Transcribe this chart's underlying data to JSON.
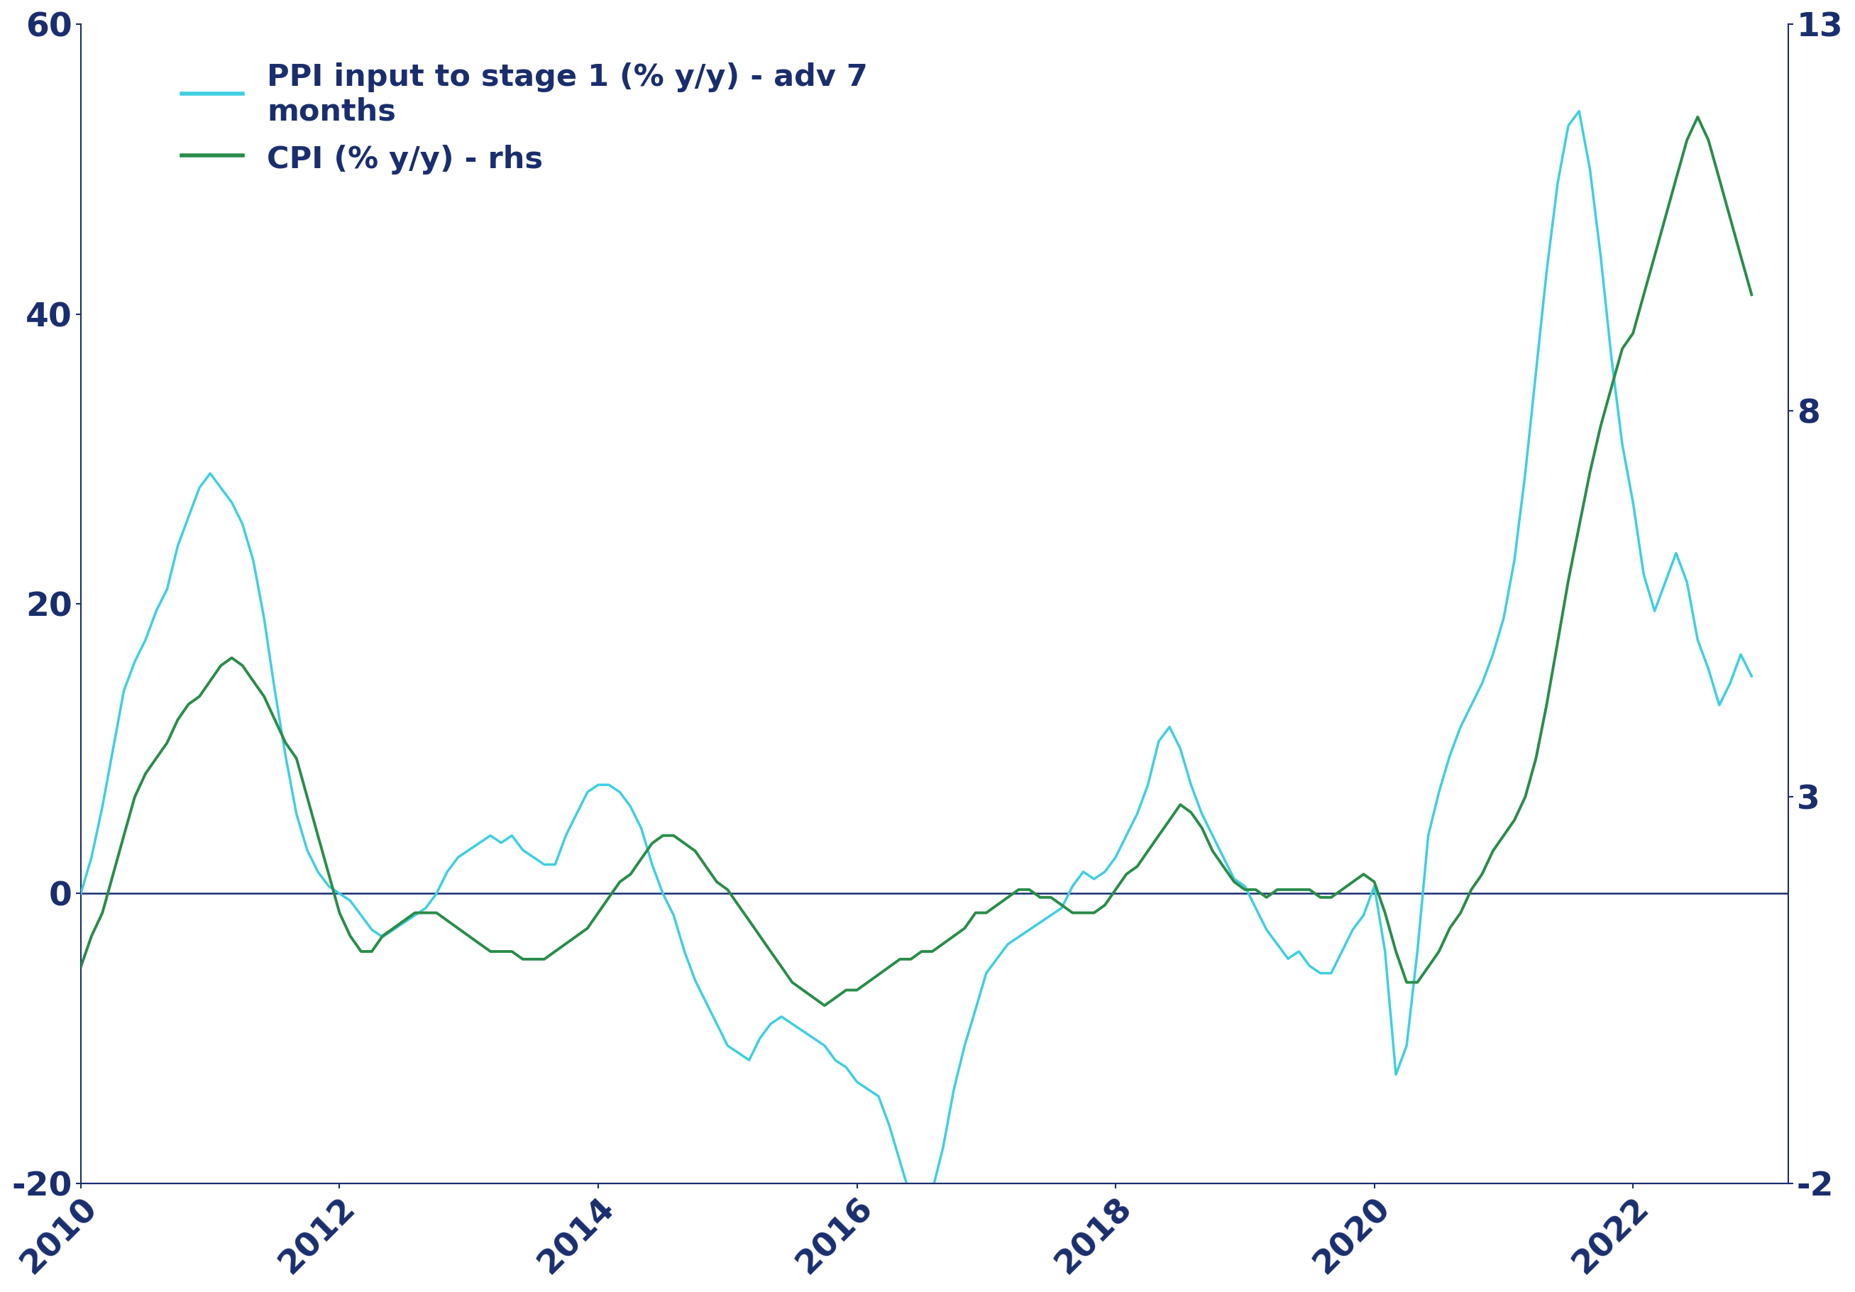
{
  "ppi_color": "#3ecfdf",
  "cpi_color": "#2a8c4a",
  "axis_color": "#1a2e6e",
  "zero_line_color": "#1a2e6e",
  "background_color": "#ffffff",
  "left_ylim": [
    -20,
    60
  ],
  "right_ylim": [
    -2,
    13
  ],
  "left_yticks": [
    -20,
    0,
    20,
    40,
    60
  ],
  "right_yticks": [
    -2,
    3,
    8,
    13
  ],
  "xtick_positions": [
    2010,
    2012,
    2014,
    2016,
    2018,
    2020,
    2022
  ],
  "xtick_labels": [
    "2010",
    "2012",
    "2014",
    "2016",
    "2018",
    "2020",
    "2022"
  ],
  "legend_ppi": "PPI input to stage 1 (% y/y) - adv 7\nmonths",
  "legend_cpi": "CPI (% y/y) - rhs",
  "xlim": [
    2010.0,
    2023.2
  ],
  "ppi_data": {
    "dates": [
      2010.0,
      2010.083,
      2010.167,
      2010.25,
      2010.333,
      2010.417,
      2010.5,
      2010.583,
      2010.667,
      2010.75,
      2010.833,
      2010.917,
      2011.0,
      2011.083,
      2011.167,
      2011.25,
      2011.333,
      2011.417,
      2011.5,
      2011.583,
      2011.667,
      2011.75,
      2011.833,
      2011.917,
      2012.0,
      2012.083,
      2012.167,
      2012.25,
      2012.333,
      2012.417,
      2012.5,
      2012.583,
      2012.667,
      2012.75,
      2012.833,
      2012.917,
      2013.0,
      2013.083,
      2013.167,
      2013.25,
      2013.333,
      2013.417,
      2013.5,
      2013.583,
      2013.667,
      2013.75,
      2013.833,
      2013.917,
      2014.0,
      2014.083,
      2014.167,
      2014.25,
      2014.333,
      2014.417,
      2014.5,
      2014.583,
      2014.667,
      2014.75,
      2014.833,
      2014.917,
      2015.0,
      2015.083,
      2015.167,
      2015.25,
      2015.333,
      2015.417,
      2015.5,
      2015.583,
      2015.667,
      2015.75,
      2015.833,
      2015.917,
      2016.0,
      2016.083,
      2016.167,
      2016.25,
      2016.333,
      2016.417,
      2016.5,
      2016.583,
      2016.667,
      2016.75,
      2016.833,
      2016.917,
      2017.0,
      2017.083,
      2017.167,
      2017.25,
      2017.333,
      2017.417,
      2017.5,
      2017.583,
      2017.667,
      2017.75,
      2017.833,
      2017.917,
      2018.0,
      2018.083,
      2018.167,
      2018.25,
      2018.333,
      2018.417,
      2018.5,
      2018.583,
      2018.667,
      2018.75,
      2018.833,
      2018.917,
      2019.0,
      2019.083,
      2019.167,
      2019.25,
      2019.333,
      2019.417,
      2019.5,
      2019.583,
      2019.667,
      2019.75,
      2019.833,
      2019.917,
      2020.0,
      2020.083,
      2020.167,
      2020.25,
      2020.333,
      2020.417,
      2020.5,
      2020.583,
      2020.667,
      2020.75,
      2020.833,
      2020.917,
      2021.0,
      2021.083,
      2021.167,
      2021.25,
      2021.333,
      2021.417,
      2021.5,
      2021.583,
      2021.667,
      2021.75,
      2021.833,
      2021.917,
      2022.0,
      2022.083,
      2022.167,
      2022.25,
      2022.333,
      2022.417,
      2022.5,
      2022.583,
      2022.667,
      2022.75,
      2022.833,
      2022.917
    ],
    "values": [
      0.0,
      2.5,
      6.0,
      10.0,
      14.0,
      16.0,
      17.5,
      19.5,
      21.0,
      24.0,
      26.0,
      28.0,
      29.0,
      28.0,
      27.0,
      25.5,
      23.0,
      19.0,
      14.0,
      9.5,
      5.5,
      3.0,
      1.5,
      0.5,
      0.0,
      -0.5,
      -1.5,
      -2.5,
      -3.0,
      -2.5,
      -2.0,
      -1.5,
      -1.0,
      0.0,
      1.5,
      2.5,
      3.0,
      3.5,
      4.0,
      3.5,
      4.0,
      3.0,
      2.5,
      2.0,
      2.0,
      4.0,
      5.5,
      7.0,
      7.5,
      7.5,
      7.0,
      6.0,
      4.5,
      2.0,
      0.0,
      -1.5,
      -4.0,
      -6.0,
      -7.5,
      -9.0,
      -10.5,
      -11.0,
      -11.5,
      -10.0,
      -9.0,
      -8.5,
      -9.0,
      -9.5,
      -10.0,
      -10.5,
      -11.5,
      -12.0,
      -13.0,
      -13.5,
      -14.0,
      -16.0,
      -18.5,
      -21.0,
      -22.0,
      -20.5,
      -17.5,
      -13.5,
      -10.5,
      -8.0,
      -5.5,
      -4.5,
      -3.5,
      -3.0,
      -2.5,
      -2.0,
      -1.5,
      -1.0,
      0.5,
      1.5,
      1.0,
      1.5,
      2.5,
      4.0,
      5.5,
      7.5,
      10.5,
      11.5,
      10.0,
      7.5,
      5.5,
      4.0,
      2.5,
      1.0,
      0.5,
      -1.0,
      -2.5,
      -3.5,
      -4.5,
      -4.0,
      -5.0,
      -5.5,
      -5.5,
      -4.0,
      -2.5,
      -1.5,
      0.5,
      -4.0,
      -12.5,
      -10.5,
      -4.0,
      4.0,
      7.0,
      9.5,
      11.5,
      13.0,
      14.5,
      16.5,
      19.0,
      23.0,
      29.0,
      36.0,
      43.0,
      49.0,
      53.0,
      54.0,
      50.0,
      44.0,
      37.0,
      31.0,
      27.0,
      22.0,
      19.5,
      21.5,
      23.5,
      21.5,
      17.5,
      15.5,
      13.0,
      14.5,
      16.5,
      15.0
    ]
  },
  "cpi_data": {
    "dates": [
      2010.0,
      2010.083,
      2010.167,
      2010.25,
      2010.333,
      2010.417,
      2010.5,
      2010.583,
      2010.667,
      2010.75,
      2010.833,
      2010.917,
      2011.0,
      2011.083,
      2011.167,
      2011.25,
      2011.333,
      2011.417,
      2011.5,
      2011.583,
      2011.667,
      2011.75,
      2011.833,
      2011.917,
      2012.0,
      2012.083,
      2012.167,
      2012.25,
      2012.333,
      2012.417,
      2012.5,
      2012.583,
      2012.667,
      2012.75,
      2012.833,
      2012.917,
      2013.0,
      2013.083,
      2013.167,
      2013.25,
      2013.333,
      2013.417,
      2013.5,
      2013.583,
      2013.667,
      2013.75,
      2013.833,
      2013.917,
      2014.0,
      2014.083,
      2014.167,
      2014.25,
      2014.333,
      2014.417,
      2014.5,
      2014.583,
      2014.667,
      2014.75,
      2014.833,
      2014.917,
      2015.0,
      2015.083,
      2015.167,
      2015.25,
      2015.333,
      2015.417,
      2015.5,
      2015.583,
      2015.667,
      2015.75,
      2015.833,
      2015.917,
      2016.0,
      2016.083,
      2016.167,
      2016.25,
      2016.333,
      2016.417,
      2016.5,
      2016.583,
      2016.667,
      2016.75,
      2016.833,
      2016.917,
      2017.0,
      2017.083,
      2017.167,
      2017.25,
      2017.333,
      2017.417,
      2017.5,
      2017.583,
      2017.667,
      2017.75,
      2017.833,
      2017.917,
      2018.0,
      2018.083,
      2018.167,
      2018.25,
      2018.333,
      2018.417,
      2018.5,
      2018.583,
      2018.667,
      2018.75,
      2018.833,
      2018.917,
      2019.0,
      2019.083,
      2019.167,
      2019.25,
      2019.333,
      2019.417,
      2019.5,
      2019.583,
      2019.667,
      2019.75,
      2019.833,
      2019.917,
      2020.0,
      2020.083,
      2020.167,
      2020.25,
      2020.333,
      2020.417,
      2020.5,
      2020.583,
      2020.667,
      2020.75,
      2020.833,
      2020.917,
      2021.0,
      2021.083,
      2021.167,
      2021.25,
      2021.333,
      2021.417,
      2021.5,
      2021.583,
      2021.667,
      2021.75,
      2021.833,
      2021.917,
      2022.0,
      2022.083,
      2022.167,
      2022.25,
      2022.333,
      2022.417,
      2022.5,
      2022.583,
      2022.667,
      2022.75,
      2022.833,
      2022.917
    ],
    "values": [
      0.8,
      1.2,
      1.5,
      2.0,
      2.5,
      3.0,
      3.3,
      3.5,
      3.7,
      4.0,
      4.2,
      4.3,
      4.5,
      4.7,
      4.8,
      4.7,
      4.5,
      4.3,
      4.0,
      3.7,
      3.5,
      3.0,
      2.5,
      2.0,
      1.5,
      1.2,
      1.0,
      1.0,
      1.2,
      1.3,
      1.4,
      1.5,
      1.5,
      1.5,
      1.4,
      1.3,
      1.2,
      1.1,
      1.0,
      1.0,
      1.0,
      0.9,
      0.9,
      0.9,
      1.0,
      1.1,
      1.2,
      1.3,
      1.5,
      1.7,
      1.9,
      2.0,
      2.2,
      2.4,
      2.5,
      2.5,
      2.4,
      2.3,
      2.1,
      1.9,
      1.8,
      1.6,
      1.4,
      1.2,
      1.0,
      0.8,
      0.6,
      0.5,
      0.4,
      0.3,
      0.4,
      0.5,
      0.5,
      0.6,
      0.7,
      0.8,
      0.9,
      0.9,
      1.0,
      1.0,
      1.1,
      1.2,
      1.3,
      1.5,
      1.5,
      1.6,
      1.7,
      1.8,
      1.8,
      1.7,
      1.7,
      1.6,
      1.5,
      1.5,
      1.5,
      1.6,
      1.8,
      2.0,
      2.1,
      2.3,
      2.5,
      2.7,
      2.9,
      2.8,
      2.6,
      2.3,
      2.1,
      1.9,
      1.8,
      1.8,
      1.7,
      1.8,
      1.8,
      1.8,
      1.8,
      1.7,
      1.7,
      1.8,
      1.9,
      2.0,
      1.9,
      1.5,
      1.0,
      0.6,
      0.6,
      0.8,
      1.0,
      1.3,
      1.5,
      1.8,
      2.0,
      2.3,
      2.5,
      2.7,
      3.0,
      3.5,
      4.2,
      5.0,
      5.8,
      6.5,
      7.2,
      7.8,
      8.3,
      8.8,
      9.0,
      9.5,
      10.0,
      10.5,
      11.0,
      11.5,
      11.8,
      11.5,
      11.0,
      10.5,
      10.0,
      9.5
    ]
  }
}
